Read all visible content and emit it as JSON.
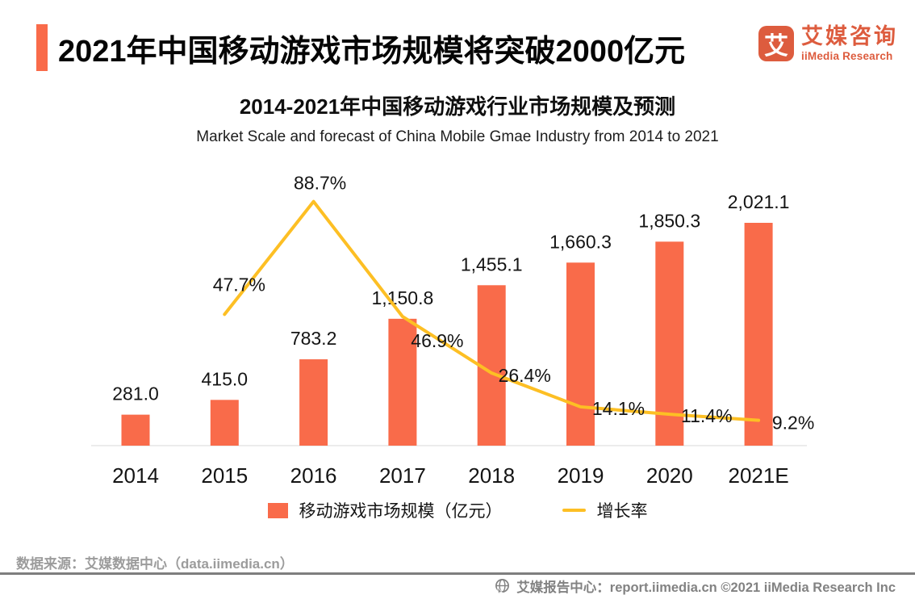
{
  "header": {
    "title": "2021年中国移动游戏市场规模将突破2000亿元",
    "accent_color": "#F96B4A"
  },
  "logo": {
    "mark": "艾",
    "name_cn": "艾媒咨询",
    "name_en": "iiMedia Research",
    "brand_color": "#DD5C3E"
  },
  "chart_data": {
    "type": "bar+line",
    "title": "2014-2021年中国移动游戏行业市场规模及预测",
    "subtitle": "Market Scale and forecast of China Mobile Gmae Industry from 2014 to 2021",
    "categories": [
      "2014",
      "2015",
      "2016",
      "2017",
      "2018",
      "2019",
      "2020",
      "2021E"
    ],
    "series": [
      {
        "name": "移动游戏市场规模（亿元）",
        "type": "bar",
        "color": "#F96B4A",
        "values": [
          281.0,
          415.0,
          783.2,
          1150.8,
          1455.1,
          1660.3,
          1850.3,
          2021.1
        ],
        "labels": [
          "281.0",
          "415.0",
          "783.2",
          "1,150.8",
          "1,455.1",
          "1,660.3",
          "1,850.3",
          "2,021.1"
        ]
      },
      {
        "name": "增长率",
        "type": "line",
        "color": "#FDBF24",
        "values": [
          null,
          47.7,
          88.7,
          46.9,
          26.4,
          14.1,
          11.4,
          9.2
        ],
        "labels": [
          null,
          "47.7%",
          "88.7%",
          "46.9%",
          "26.4%",
          "14.1%",
          "11.4%",
          "9.2%"
        ]
      }
    ],
    "value_axis": {
      "min": 0,
      "max": 2021.1
    },
    "percent_axis": {
      "min": 0,
      "max": 100
    },
    "grid": false,
    "legend_position": "bottom",
    "growth_label_offsets": [
      null,
      [
        18,
        -37
      ],
      [
        8,
        -23
      ],
      [
        43,
        30
      ],
      [
        41,
        3
      ],
      [
        47,
        2
      ],
      [
        46,
        2
      ],
      [
        43,
        3
      ]
    ]
  },
  "legend": {
    "bar_label": "移动游戏市场规模（亿元）",
    "line_label": "增长率"
  },
  "footer": {
    "source": "数据来源：艾媒数据中心（data.iimedia.cn）",
    "report_center": "艾媒报告中心：report.iimedia.cn ©2021 iiMedia Research Inc"
  }
}
